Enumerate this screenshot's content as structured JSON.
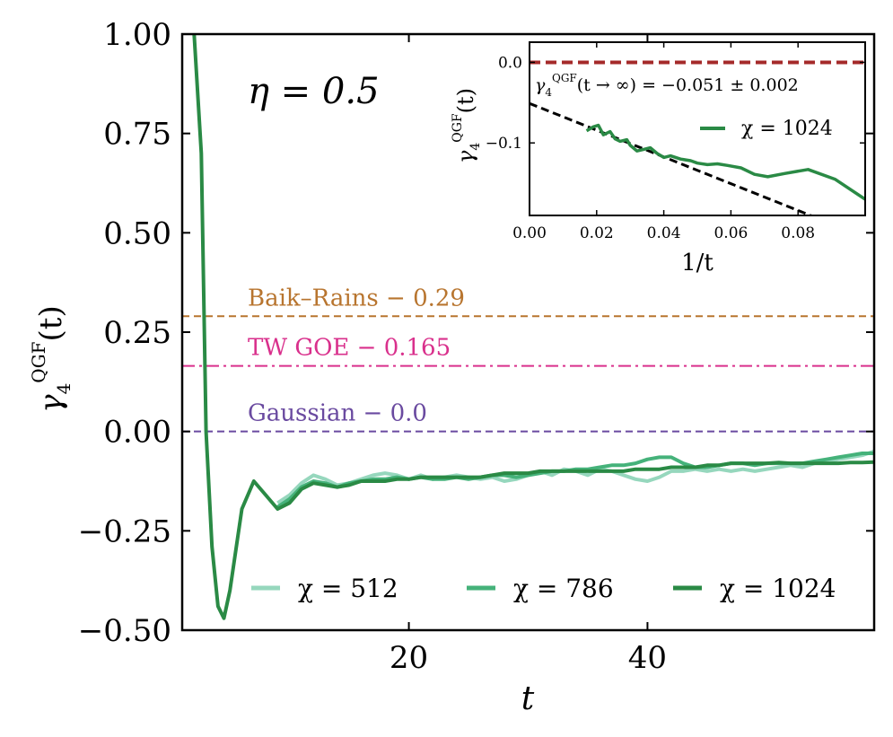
{
  "chart_data": [
    {
      "type": "line",
      "annotation": "η = 0.5",
      "xlabel": "t",
      "ylabel": "γ4QGF(t)",
      "ylabel_main": "γ",
      "ylabel_sub": "4",
      "ylabel_sup": "QGF",
      "ylabel_tail": "(t)",
      "xlim": [
        1,
        59
      ],
      "ylim": [
        -0.5,
        1.0
      ],
      "xticks": [
        20,
        40
      ],
      "xtick_labels": [
        "20",
        "40"
      ],
      "yticks": [
        1.0,
        0.75,
        0.5,
        0.25,
        0.0,
        -0.25,
        -0.5
      ],
      "ytick_labels": [
        "1.00",
        "0.75",
        "0.50",
        "0.25",
        "0.00",
        "−0.25",
        "−0.50"
      ],
      "reference_lines": [
        {
          "label": "Baik–Rains − 0.29",
          "value": 0.29,
          "color": "#b8752f",
          "style": "dashed"
        },
        {
          "label": "TW GOE − 0.165",
          "value": 0.165,
          "color": "#d9308c",
          "style": "dashdot"
        },
        {
          "label": "Gaussian − 0.0",
          "value": 0.0,
          "color": "#6a4aa0",
          "style": "dashed"
        }
      ],
      "series": [
        {
          "name": "χ = 512",
          "color": "#96d7bd",
          "x": [
            9,
            10,
            11,
            12,
            13,
            14,
            15,
            16,
            17,
            18,
            19,
            20,
            21,
            22,
            23,
            24,
            25,
            26,
            27,
            28,
            29,
            30,
            31,
            32,
            33,
            34,
            35,
            36,
            37,
            38,
            39,
            40,
            41,
            42,
            43,
            44,
            45,
            46,
            47,
            48,
            49,
            50,
            51,
            52,
            53,
            54,
            55,
            56,
            57,
            58,
            59
          ],
          "y": [
            -0.18,
            -0.16,
            -0.13,
            -0.11,
            -0.12,
            -0.135,
            -0.13,
            -0.12,
            -0.11,
            -0.105,
            -0.11,
            -0.12,
            -0.11,
            -0.12,
            -0.115,
            -0.11,
            -0.115,
            -0.12,
            -0.115,
            -0.125,
            -0.12,
            -0.11,
            -0.1,
            -0.11,
            -0.095,
            -0.1,
            -0.11,
            -0.095,
            -0.1,
            -0.11,
            -0.12,
            -0.125,
            -0.115,
            -0.1,
            -0.1,
            -0.095,
            -0.1,
            -0.095,
            -0.1,
            -0.095,
            -0.1,
            -0.095,
            -0.09,
            -0.085,
            -0.09,
            -0.08,
            -0.075,
            -0.07,
            -0.065,
            -0.06,
            -0.05
          ]
        },
        {
          "name": "χ = 786",
          "color": "#45b27a",
          "x": [
            9,
            10,
            11,
            12,
            13,
            14,
            15,
            16,
            17,
            18,
            19,
            20,
            21,
            22,
            23,
            24,
            25,
            26,
            27,
            28,
            29,
            30,
            31,
            32,
            33,
            34,
            35,
            36,
            37,
            38,
            39,
            40,
            41,
            42,
            43,
            44,
            45,
            46,
            47,
            48,
            49,
            50,
            51,
            52,
            53,
            54,
            55,
            56,
            57,
            58,
            59
          ],
          "y": [
            -0.19,
            -0.17,
            -0.14,
            -0.125,
            -0.13,
            -0.14,
            -0.13,
            -0.125,
            -0.12,
            -0.12,
            -0.115,
            -0.12,
            -0.115,
            -0.12,
            -0.12,
            -0.115,
            -0.12,
            -0.115,
            -0.11,
            -0.11,
            -0.115,
            -0.11,
            -0.105,
            -0.1,
            -0.1,
            -0.095,
            -0.095,
            -0.09,
            -0.085,
            -0.085,
            -0.08,
            -0.07,
            -0.065,
            -0.065,
            -0.08,
            -0.09,
            -0.09,
            -0.085,
            -0.08,
            -0.08,
            -0.085,
            -0.08,
            -0.08,
            -0.08,
            -0.08,
            -0.075,
            -0.07,
            -0.065,
            -0.06,
            -0.055,
            -0.055
          ]
        },
        {
          "name": "χ = 1024",
          "color": "#2a8a45",
          "x": [
            2,
            2.6,
            3,
            3.5,
            4,
            4.5,
            5,
            6,
            7,
            8,
            9,
            10,
            11,
            12,
            13,
            14,
            15,
            16,
            17,
            18,
            19,
            20,
            21,
            22,
            23,
            24,
            25,
            26,
            27,
            28,
            29,
            30,
            31,
            32,
            33,
            34,
            35,
            36,
            37,
            38,
            39,
            40,
            41,
            42,
            43,
            44,
            45,
            46,
            47,
            48,
            49,
            50,
            51,
            52,
            53,
            54,
            55,
            56,
            57,
            58,
            59
          ],
          "y": [
            1.0,
            0.7,
            0.0,
            -0.29,
            -0.44,
            -0.47,
            -0.4,
            -0.195,
            -0.125,
            -0.16,
            -0.195,
            -0.18,
            -0.145,
            -0.13,
            -0.135,
            -0.14,
            -0.135,
            -0.125,
            -0.125,
            -0.125,
            -0.12,
            -0.12,
            -0.115,
            -0.115,
            -0.115,
            -0.115,
            -0.115,
            -0.115,
            -0.11,
            -0.105,
            -0.105,
            -0.105,
            -0.1,
            -0.1,
            -0.1,
            -0.1,
            -0.1,
            -0.1,
            -0.1,
            -0.1,
            -0.095,
            -0.095,
            -0.095,
            -0.09,
            -0.09,
            -0.09,
            -0.085,
            -0.085,
            -0.08,
            -0.08,
            -0.08,
            -0.08,
            -0.078,
            -0.08,
            -0.08,
            -0.08,
            -0.08,
            -0.08,
            -0.078,
            -0.078,
            -0.077
          ]
        }
      ]
    },
    {
      "type": "line",
      "inset": true,
      "xlabel": "1/t",
      "ylabel": "γ4QGF(t)",
      "ylabel_main": "γ",
      "ylabel_sub": "4",
      "ylabel_sup": "QGF",
      "ylabel_tail": "(t)",
      "xlim": [
        0,
        0.1
      ],
      "ylim": [
        -0.19,
        0.025
      ],
      "xticks": [
        0.0,
        0.02,
        0.04,
        0.06,
        0.08
      ],
      "xtick_labels": [
        "0.00",
        "0.02",
        "0.04",
        "0.06",
        "0.08"
      ],
      "yticks": [
        0.0,
        -0.1
      ],
      "ytick_labels": [
        "0.0",
        "−0.1"
      ],
      "reference_line": {
        "value": 0.0,
        "color": "#a52a2a",
        "style": "dashed"
      },
      "extrapolation_text": "γ4QGF(t → ∞) = −0.051 ± 0.002",
      "extrapolation_main": "γ",
      "extrapolation_sub": "4",
      "extrapolation_sup": "QGF",
      "extrapolation_tail": "(t → ∞) = −0.051 ± 0.002",
      "fit": {
        "intercept": -0.051,
        "slope": -1.66,
        "x_range": [
          0,
          0.1
        ],
        "color": "#000000",
        "style": "dashed"
      },
      "series": [
        {
          "name": "χ = 1024",
          "color": "#2a8a45",
          "x": [
            0.017,
            0.019,
            0.0205,
            0.022,
            0.024,
            0.0255,
            0.027,
            0.029,
            0.03,
            0.032,
            0.034,
            0.036,
            0.038,
            0.04,
            0.042,
            0.045,
            0.048,
            0.05,
            0.053,
            0.056,
            0.059,
            0.063,
            0.067,
            0.071,
            0.076,
            0.083,
            0.091,
            0.1
          ],
          "y": [
            -0.085,
            -0.08,
            -0.078,
            -0.09,
            -0.086,
            -0.095,
            -0.098,
            -0.096,
            -0.103,
            -0.11,
            -0.108,
            -0.106,
            -0.113,
            -0.118,
            -0.116,
            -0.12,
            -0.122,
            -0.125,
            -0.127,
            -0.126,
            -0.128,
            -0.131,
            -0.139,
            -0.142,
            -0.138,
            -0.133,
            -0.145,
            -0.17
          ]
        }
      ]
    }
  ]
}
